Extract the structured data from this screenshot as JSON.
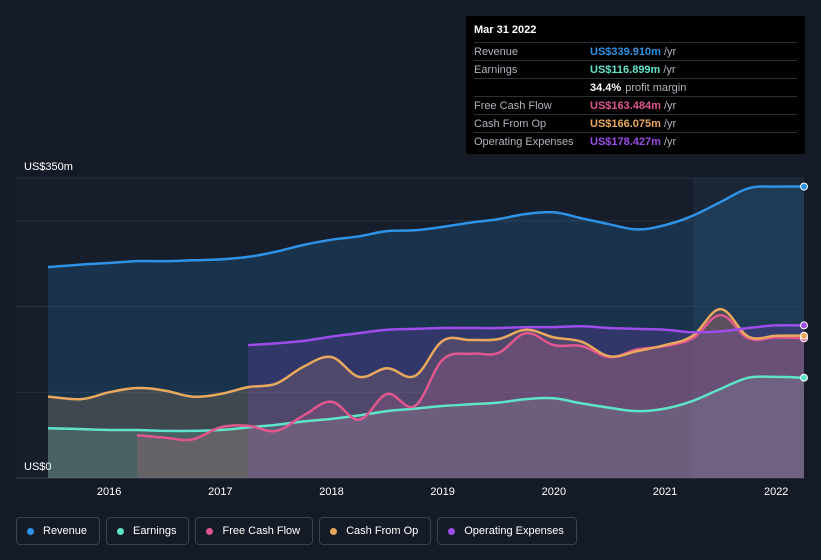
{
  "tooltip": {
    "date": "Mar 31 2022",
    "rows": [
      {
        "label": "Revenue",
        "value": "US$339.910m",
        "unit": "/yr",
        "color": "#2e93e6"
      },
      {
        "label": "Earnings",
        "value": "US$116.899m",
        "unit": "/yr",
        "color": "#5fe3c9"
      },
      {
        "margin_value": "34.4%",
        "margin_text": "profit margin"
      },
      {
        "label": "Free Cash Flow",
        "value": "US$163.484m",
        "unit": "/yr",
        "color": "#e0578f"
      },
      {
        "label": "Cash From Op",
        "value": "US$166.075m",
        "unit": "/yr",
        "color": "#e8a95e"
      },
      {
        "label": "Operating Expenses",
        "value": "US$178.427m",
        "unit": "/yr",
        "color": "#9c4dea"
      }
    ]
  },
  "legend": [
    {
      "label": "Revenue",
      "color": "#2e93e6"
    },
    {
      "label": "Earnings",
      "color": "#5fe3c9"
    },
    {
      "label": "Free Cash Flow",
      "color": "#e0578f"
    },
    {
      "label": "Cash From Op",
      "color": "#e8a95e"
    },
    {
      "label": "Operating Expenses",
      "color": "#9c4dea"
    }
  ],
  "chart_data": {
    "type": "area",
    "title": "",
    "ylabel_top": "US$350m",
    "ylabel_bottom": "US$0",
    "ylim": [
      0,
      350
    ],
    "xlim": [
      2015.45,
      2022.25
    ],
    "x_ticks": [
      2016,
      2017,
      2018,
      2019,
      2020,
      2021,
      2022
    ],
    "x_tick_labels": [
      "2016",
      "2017",
      "2018",
      "2019",
      "2020",
      "2021",
      "2022"
    ],
    "highlight_start": 2021.25,
    "series": [
      {
        "name": "Revenue",
        "color": "#2e93e6",
        "x": [
          2015.45,
          2015.75,
          2016.0,
          2016.25,
          2016.5,
          2016.75,
          2017.0,
          2017.25,
          2017.5,
          2017.75,
          2018.0,
          2018.25,
          2018.5,
          2018.75,
          2019.0,
          2019.25,
          2019.5,
          2019.75,
          2020.0,
          2020.25,
          2020.5,
          2020.75,
          2021.0,
          2021.25,
          2021.5,
          2021.75,
          2022.0,
          2022.25
        ],
        "values": [
          246,
          249,
          251,
          253,
          253,
          254,
          255,
          258,
          264,
          272,
          278,
          282,
          288,
          289,
          293,
          298,
          302,
          308,
          310,
          303,
          296,
          290,
          295,
          306,
          322,
          338,
          340,
          340
        ]
      },
      {
        "name": "Earnings",
        "color": "#5fe3c9",
        "x": [
          2015.45,
          2015.75,
          2016.0,
          2016.25,
          2016.5,
          2016.75,
          2017.0,
          2017.25,
          2017.5,
          2017.75,
          2018.0,
          2018.25,
          2018.5,
          2018.75,
          2019.0,
          2019.25,
          2019.5,
          2019.75,
          2020.0,
          2020.25,
          2020.5,
          2020.75,
          2021.0,
          2021.25,
          2021.5,
          2021.75,
          2022.0,
          2022.25
        ],
        "values": [
          58,
          57,
          56,
          56,
          55,
          55,
          56,
          59,
          62,
          66,
          69,
          73,
          78,
          81,
          84,
          86,
          88,
          92,
          93,
          87,
          82,
          78,
          81,
          90,
          104,
          117,
          118,
          117
        ]
      },
      {
        "name": "Free Cash Flow",
        "color": "#e0578f",
        "x": [
          2016.25,
          2016.5,
          2016.75,
          2017.0,
          2017.25,
          2017.5,
          2017.75,
          2018.0,
          2018.25,
          2018.5,
          2018.75,
          2019.0,
          2019.25,
          2019.5,
          2019.75,
          2020.0,
          2020.25,
          2020.5,
          2020.75,
          2021.0,
          2021.25,
          2021.5,
          2021.75,
          2022.0,
          2022.25
        ],
        "values": [
          50,
          47,
          45,
          59,
          61,
          55,
          73,
          89,
          68,
          98,
          84,
          138,
          145,
          146,
          169,
          155,
          154,
          141,
          150,
          154,
          163,
          190,
          163,
          164,
          163
        ]
      },
      {
        "name": "Cash From Op",
        "color": "#e8a95e",
        "x": [
          2015.45,
          2015.75,
          2016.0,
          2016.25,
          2016.5,
          2016.75,
          2017.0,
          2017.25,
          2017.5,
          2017.75,
          2018.0,
          2018.25,
          2018.5,
          2018.75,
          2019.0,
          2019.25,
          2019.5,
          2019.75,
          2020.0,
          2020.25,
          2020.5,
          2020.75,
          2021.0,
          2021.25,
          2021.5,
          2021.75,
          2022.0,
          2022.25
        ],
        "values": [
          95,
          92,
          100,
          105,
          102,
          95,
          98,
          106,
          110,
          130,
          141,
          118,
          128,
          119,
          160,
          161,
          162,
          173,
          164,
          159,
          142,
          148,
          155,
          166,
          197,
          165,
          166,
          166
        ]
      },
      {
        "name": "Operating Expenses",
        "color": "#9c4dea",
        "x": [
          2017.25,
          2017.5,
          2017.75,
          2018.0,
          2018.25,
          2018.5,
          2018.75,
          2019.0,
          2019.25,
          2019.5,
          2019.75,
          2020.0,
          2020.25,
          2020.5,
          2020.75,
          2021.0,
          2021.25,
          2021.5,
          2021.75,
          2022.0,
          2022.25
        ],
        "values": [
          155,
          157,
          160,
          165,
          169,
          173,
          174,
          175,
          175,
          175,
          176,
          176,
          177,
          175,
          174,
          173,
          170,
          171,
          175,
          178,
          178
        ]
      }
    ]
  }
}
